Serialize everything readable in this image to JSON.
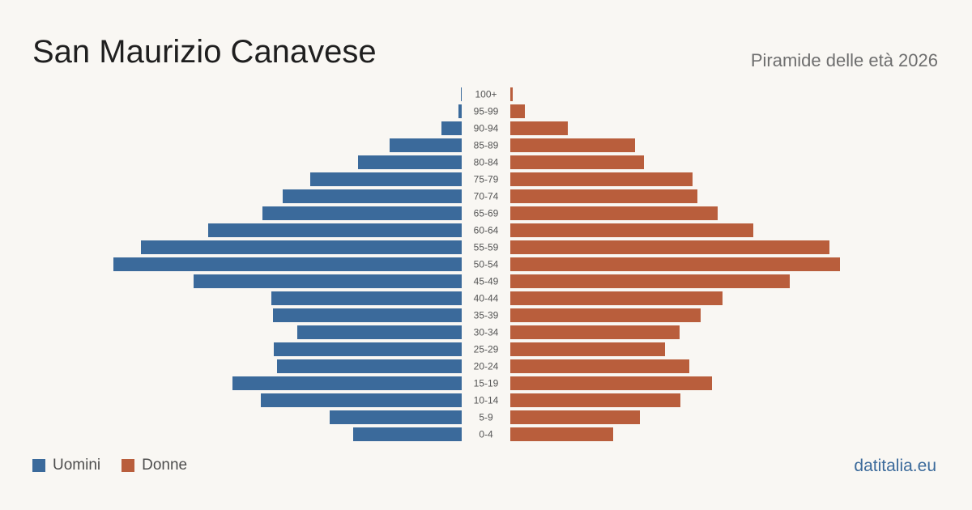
{
  "header": {
    "title": "San Maurizio Canavese",
    "subtitle": "Piramide delle età 2026"
  },
  "legend": {
    "men_label": "Uomini",
    "women_label": "Donne"
  },
  "brand": "datitalia.eu",
  "colors": {
    "men": "#3b6a9b",
    "women": "#b95e3c",
    "background": "#f9f7f3",
    "age_label": "#555555"
  },
  "chart_data": {
    "type": "bar",
    "orientation": "horizontal-pyramid",
    "categories": [
      "100+",
      "95-99",
      "90-94",
      "85-89",
      "80-84",
      "75-79",
      "70-74",
      "65-69",
      "60-64",
      "55-59",
      "50-54",
      "45-49",
      "40-44",
      "35-39",
      "30-34",
      "25-29",
      "20-24",
      "15-19",
      "10-14",
      "5-9",
      "0-4"
    ],
    "series": [
      {
        "name": "Uomini",
        "values": [
          1,
          4,
          25,
          89,
          128,
          187,
          221,
          246,
          313,
          396,
          430,
          331,
          235,
          233,
          203,
          232,
          228,
          283,
          248,
          163,
          134
        ]
      },
      {
        "name": "Donne",
        "values": [
          3,
          18,
          71,
          154,
          165,
          225,
          231,
          256,
          300,
          394,
          407,
          345,
          262,
          235,
          209,
          191,
          221,
          249,
          210,
          160,
          127
        ]
      }
    ],
    "xlim": [
      0,
      430
    ],
    "legend_position": "bottom-left",
    "grid": false
  }
}
